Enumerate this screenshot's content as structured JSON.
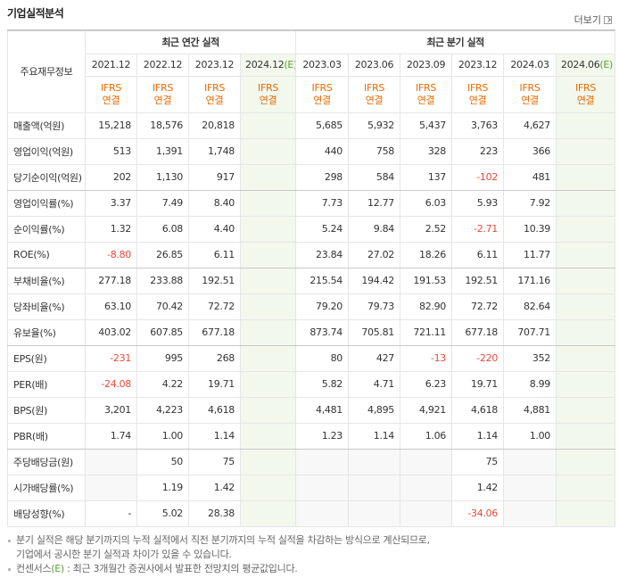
{
  "header": {
    "title": "기업실적분석",
    "more": "더보기"
  },
  "table": {
    "corner": "주요재무정보",
    "groups": [
      {
        "label": "최근 연간 실적",
        "span": 4
      },
      {
        "label": "최근 분기 실적",
        "span": 6
      }
    ],
    "columns": [
      {
        "period": "2021.12",
        "std": "IFRS",
        "basis": "연결"
      },
      {
        "period": "2022.12",
        "std": "IFRS",
        "basis": "연결"
      },
      {
        "period": "2023.12",
        "std": "IFRS",
        "basis": "연결"
      },
      {
        "period": "2024.12",
        "estimate": "(E)",
        "std": "IFRS",
        "basis": "연결"
      },
      {
        "period": "2023.03",
        "std": "IFRS",
        "basis": "연결"
      },
      {
        "period": "2023.06",
        "std": "IFRS",
        "basis": "연결"
      },
      {
        "period": "2023.09",
        "std": "IFRS",
        "basis": "연결"
      },
      {
        "period": "2023.12",
        "std": "IFRS",
        "basis": "연결"
      },
      {
        "period": "2024.03",
        "std": "IFRS",
        "basis": "연결"
      },
      {
        "period": "2024.06",
        "estimate": "(E)",
        "std": "IFRS",
        "basis": "연결"
      }
    ],
    "rows": [
      {
        "label": "매출액(억원)",
        "cells": [
          "15,218",
          "18,576",
          "20,818",
          null,
          "5,685",
          "5,932",
          "5,437",
          "3,763",
          "4,627",
          null
        ]
      },
      {
        "label": "영업이익(억원)",
        "cells": [
          "513",
          "1,391",
          "1,748",
          null,
          "440",
          "758",
          "328",
          "223",
          "366",
          null
        ]
      },
      {
        "label": "당기순이익(억원)",
        "cells": [
          "202",
          "1,130",
          "917",
          null,
          "298",
          "584",
          "137",
          "-102",
          "481",
          null
        ]
      },
      {
        "label": "영업이익률(%)",
        "cells": [
          "3.37",
          "7.49",
          "8.40",
          null,
          "7.73",
          "12.77",
          "6.03",
          "5.93",
          "7.92",
          null
        ]
      },
      {
        "label": "순이익률(%)",
        "cells": [
          "1.32",
          "6.08",
          "4.40",
          null,
          "5.24",
          "9.84",
          "2.52",
          "-2.71",
          "10.39",
          null
        ]
      },
      {
        "label": "ROE(%)",
        "cells": [
          "-8.80",
          "26.85",
          "6.11",
          null,
          "23.84",
          "27.02",
          "18.26",
          "6.11",
          "11.77",
          null
        ]
      },
      {
        "label": "부채비율(%)",
        "cells": [
          "277.18",
          "233.88",
          "192.51",
          null,
          "215.54",
          "194.42",
          "191.53",
          "192.51",
          "171.16",
          null
        ]
      },
      {
        "label": "당좌비율(%)",
        "cells": [
          "63.10",
          "70.42",
          "72.72",
          null,
          "79.20",
          "79.73",
          "82.90",
          "72.72",
          "82.64",
          null
        ]
      },
      {
        "label": "유보율(%)",
        "cells": [
          "403.02",
          "607.85",
          "677.18",
          null,
          "873.74",
          "705.81",
          "721.11",
          "677.18",
          "707.71",
          null
        ]
      },
      {
        "label": "EPS(원)",
        "cells": [
          "-231",
          "995",
          "268",
          null,
          "80",
          "427",
          "-13",
          "-220",
          "352",
          null
        ]
      },
      {
        "label": "PER(배)",
        "cells": [
          "-24.08",
          "4.22",
          "19.71",
          null,
          "5.82",
          "4.71",
          "6.23",
          "19.71",
          "8.99",
          null
        ]
      },
      {
        "label": "BPS(원)",
        "cells": [
          "3,201",
          "4,223",
          "4,618",
          null,
          "4,481",
          "4,895",
          "4,921",
          "4,618",
          "4,881",
          null
        ]
      },
      {
        "label": "PBR(배)",
        "cells": [
          "1.74",
          "1.00",
          "1.14",
          null,
          "1.23",
          "1.14",
          "1.06",
          "1.14",
          "1.00",
          null
        ]
      },
      {
        "label": "주당배당금(원)",
        "cells": [
          null,
          "50",
          "75",
          null,
          null,
          null,
          null,
          "75",
          null,
          null
        ]
      },
      {
        "label": "시가배당률(%)",
        "cells": [
          null,
          "1.19",
          "1.42",
          null,
          null,
          null,
          null,
          "1.42",
          null,
          null
        ]
      },
      {
        "label": "배당성향(%)",
        "cells": [
          "-",
          "5.02",
          "28.38",
          null,
          null,
          null,
          null,
          "-34.06",
          null,
          null
        ]
      }
    ]
  },
  "notes": [
    {
      "lines": [
        "분기 실적은 해당 분기까지의 누적 실적에서 직전 분기까지의 누적 실적을 차감하는 방식으로 계산되므로,",
        "기업에서 공시한 분기 실적과 차이가 있을 수 있습니다."
      ]
    },
    {
      "prefix": "컨센서스",
      "mark": "(E)",
      "text": " : 최근 3개월간 증권사에서 발표한 전망치의 평균값입니다."
    }
  ]
}
